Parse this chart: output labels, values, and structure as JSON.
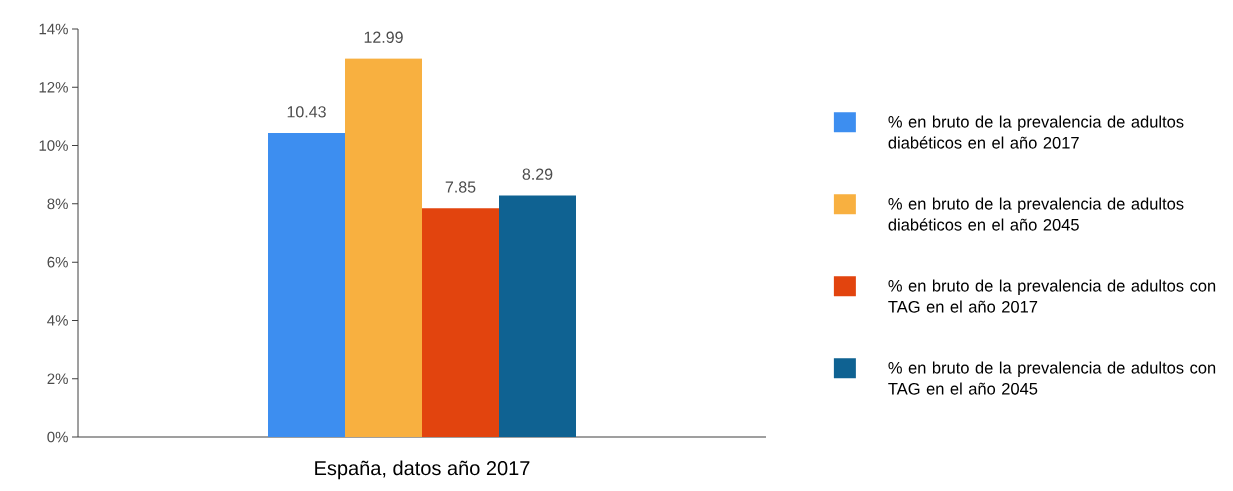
{
  "chart_data": {
    "type": "bar",
    "categories": [
      "España, datos año 2017"
    ],
    "series": [
      {
        "name": "% en bruto de la prevalencia de adultos diabéticos en el año 2017",
        "color": "#3d8ef0",
        "values": [
          10.43
        ]
      },
      {
        "name": "% en bruto de la prevalencia de adultos diabéticos en el año 2045",
        "color": "#f8b040",
        "values": [
          12.99
        ]
      },
      {
        "name": "% en bruto de la prevalencia de adultos con TAG  en el año 2017",
        "color": "#e2440e",
        "values": [
          7.85
        ]
      },
      {
        "name": "% en bruto de la prevalencia de adultos con TAG en el año 2045",
        "color": "#0f6292",
        "values": [
          8.29
        ]
      }
    ],
    "ylim": [
      0,
      14
    ],
    "yticks": [
      {
        "value": 0,
        "label": "0%"
      },
      {
        "value": 2,
        "label": "2%"
      },
      {
        "value": 4,
        "label": "4%"
      },
      {
        "value": 6,
        "label": "6%"
      },
      {
        "value": 8,
        "label": "8%"
      },
      {
        "value": 10,
        "label": "10%"
      },
      {
        "value": 12,
        "label": "12%"
      },
      {
        "value": 14,
        "label": "14%"
      }
    ],
    "data_labels": true,
    "legend": "right"
  }
}
